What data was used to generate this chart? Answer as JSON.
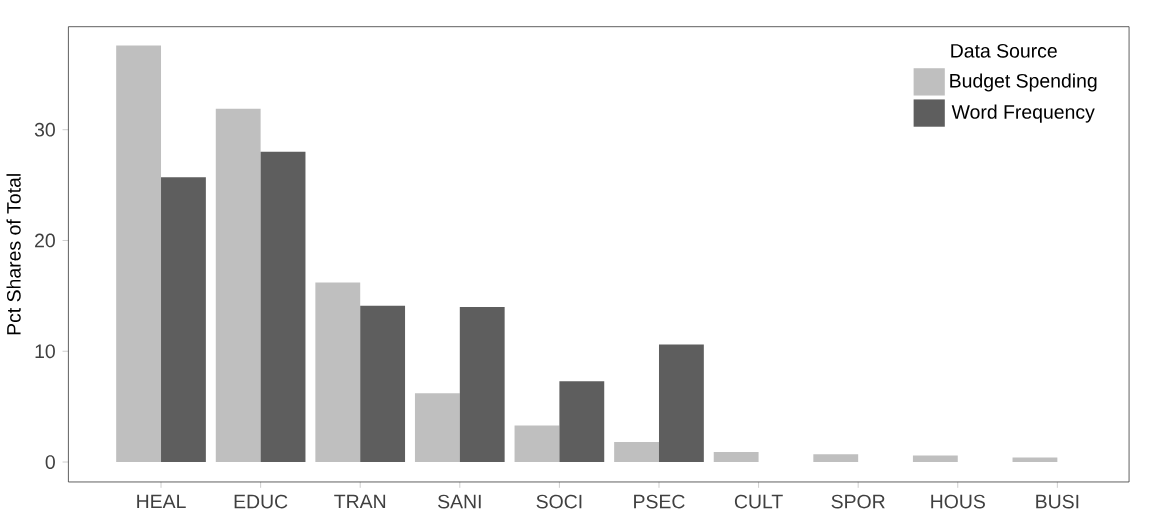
{
  "chart_data": {
    "type": "bar",
    "ylabel": "Pct Shares of Total",
    "legend_title": "Data Source",
    "categories": [
      "HEAL",
      "EDUC",
      "TRAN",
      "SANI",
      "SOCI",
      "PSEC",
      "CULT",
      "SPOR",
      "HOUS",
      "BUSI"
    ],
    "series": [
      {
        "name": "Budget Spending",
        "color": "#bfbfbf",
        "values": [
          37.6,
          31.9,
          16.2,
          6.2,
          3.3,
          1.8,
          0.9,
          0.7,
          0.6,
          0.4
        ]
      },
      {
        "name": "Word Frequency",
        "color": "#5e5e5e",
        "values": [
          25.7,
          28.0,
          14.1,
          14.0,
          7.3,
          10.6,
          null,
          null,
          null,
          null
        ]
      }
    ],
    "ylim": [
      -1.8,
      39.3
    ],
    "yticks": [
      0,
      10,
      20,
      30
    ],
    "grid": false,
    "legend": "top right"
  }
}
